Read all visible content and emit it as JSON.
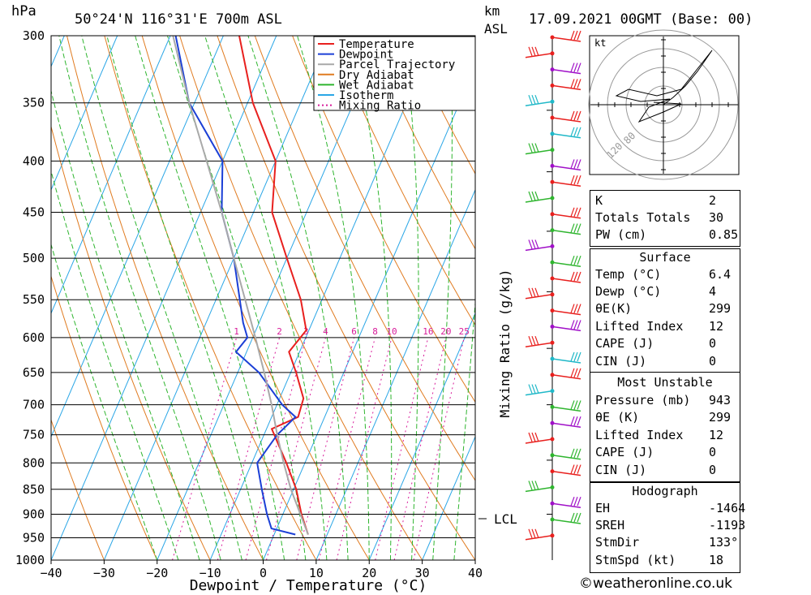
{
  "header": {
    "pressure_unit": "hPa",
    "location": "50°24'N  116°31'E  700m  ASL",
    "height_unit_1": "km",
    "height_unit_2": "ASL",
    "datetime": "17.09.2021  00GMT  (Base: 00)"
  },
  "chart_data": {
    "type": "line",
    "title": "50°24'N  116°31'E  700m  ASL",
    "xlabel": "Dewpoint / Temperature (°C)",
    "ylabel": "hPa",
    "xlim": [
      -40,
      40
    ],
    "ylim": [
      1000,
      300
    ],
    "y_scale": "log",
    "x_ticks": [
      -40,
      -30,
      -20,
      -10,
      0,
      10,
      20,
      30,
      40
    ],
    "pressure_levels": [
      300,
      350,
      400,
      450,
      500,
      550,
      600,
      650,
      700,
      750,
      800,
      850,
      900,
      950,
      1000
    ],
    "legend_position": "top-right",
    "legend": [
      {
        "name": "Temperature",
        "color": "#e8201e"
      },
      {
        "name": "Dewpoint",
        "color": "#1b3fd6"
      },
      {
        "name": "Parcel Trajectory",
        "color": "#a9a9a9"
      },
      {
        "name": "Dry Adiabat",
        "color": "#e07b20"
      },
      {
        "name": "Wet Adiabat",
        "color": "#2fb52f"
      },
      {
        "name": "Isotherm",
        "color": "#2aa6e6"
      },
      {
        "name": "Mixing Ratio",
        "color": "#d81b9a"
      }
    ],
    "mixing_ratio_label": "Mixing Ratio (g/kg)",
    "mixing_ratio_values": [
      "1",
      "2",
      "3",
      "4",
      "6",
      "8",
      "10",
      "16",
      "20",
      "25"
    ],
    "series": [
      {
        "name": "Temperature",
        "color": "#e8201e",
        "points": [
          {
            "p": 943,
            "t": 6.4
          },
          {
            "p": 900,
            "t": 3.5
          },
          {
            "p": 850,
            "t": 0.5
          },
          {
            "p": 800,
            "t": -3.5
          },
          {
            "p": 740,
            "t": -9.0
          },
          {
            "p": 720,
            "t": -5.0
          },
          {
            "p": 690,
            "t": -5.5
          },
          {
            "p": 650,
            "t": -9.0
          },
          {
            "p": 620,
            "t": -12.0
          },
          {
            "p": 590,
            "t": -10.5
          },
          {
            "p": 550,
            "t": -14.0
          },
          {
            "p": 500,
            "t": -20.0
          },
          {
            "p": 450,
            "t": -26.5
          },
          {
            "p": 400,
            "t": -30.0
          },
          {
            "p": 350,
            "t": -39.0
          },
          {
            "p": 300,
            "t": -47.0
          }
        ]
      },
      {
        "name": "Dewpoint",
        "color": "#1b3fd6",
        "points": [
          {
            "p": 943,
            "t": 4.0
          },
          {
            "p": 930,
            "t": -1.0
          },
          {
            "p": 900,
            "t": -3.0
          },
          {
            "p": 850,
            "t": -6.0
          },
          {
            "p": 800,
            "t": -9.0
          },
          {
            "p": 750,
            "t": -7.5
          },
          {
            "p": 720,
            "t": -5.5
          },
          {
            "p": 700,
            "t": -9.0
          },
          {
            "p": 650,
            "t": -16.0
          },
          {
            "p": 620,
            "t": -22.0
          },
          {
            "p": 600,
            "t": -21.0
          },
          {
            "p": 580,
            "t": -23.0
          },
          {
            "p": 500,
            "t": -30.0
          },
          {
            "p": 450,
            "t": -36.0
          },
          {
            "p": 400,
            "t": -40.0
          },
          {
            "p": 350,
            "t": -51.0
          },
          {
            "p": 300,
            "t": -59.0
          }
        ]
      },
      {
        "name": "Parcel Trajectory",
        "color": "#a9a9a9",
        "points": [
          {
            "p": 943,
            "t": 6.4
          },
          {
            "p": 900,
            "t": 3.3
          },
          {
            "p": 850,
            "t": -0.5
          },
          {
            "p": 800,
            "t": -4.0
          },
          {
            "p": 750,
            "t": -7.5
          },
          {
            "p": 700,
            "t": -11.0
          },
          {
            "p": 650,
            "t": -15.0
          },
          {
            "p": 600,
            "t": -19.5
          },
          {
            "p": 550,
            "t": -24.5
          },
          {
            "p": 500,
            "t": -30.0
          },
          {
            "p": 450,
            "t": -36.0
          },
          {
            "p": 400,
            "t": -43.0
          },
          {
            "p": 350,
            "t": -51.0
          },
          {
            "p": 300,
            "t": -59.5
          }
        ]
      }
    ],
    "lcl_label": "LCL",
    "lcl_pressure": 905,
    "height_ticks_km": [
      {
        "km": "1",
        "p": 900
      },
      {
        "km": "2",
        "p": 795
      },
      {
        "km": "3",
        "p": 700
      },
      {
        "km": "4",
        "p": 615
      },
      {
        "km": "5",
        "p": 540
      },
      {
        "km": "6",
        "p": 470
      },
      {
        "km": "7",
        "p": 410
      },
      {
        "km": "8",
        "p": 356
      }
    ]
  },
  "hodograph": {
    "unit_label": "kt",
    "ring_labels": [
      "80",
      "120"
    ]
  },
  "indices": {
    "rows": [
      {
        "label": "K",
        "value": "2"
      },
      {
        "label": "Totals Totals",
        "value": "30"
      },
      {
        "label": "PW (cm)",
        "value": "0.85"
      }
    ],
    "surface": {
      "title": "Surface",
      "rows": [
        {
          "label": "Temp (°C)",
          "value": "6.4"
        },
        {
          "label": "Dewp (°C)",
          "value": "4"
        },
        {
          "label": "θE(K)",
          "value": "299"
        },
        {
          "label": "Lifted Index",
          "value": "12"
        },
        {
          "label": "CAPE (J)",
          "value": "0"
        },
        {
          "label": "CIN (J)",
          "value": "0"
        }
      ]
    },
    "most_unstable": {
      "title": "Most Unstable",
      "rows": [
        {
          "label": "Pressure (mb)",
          "value": "943"
        },
        {
          "label": "θE (K)",
          "value": "299"
        },
        {
          "label": "Lifted Index",
          "value": "12"
        },
        {
          "label": "CAPE (J)",
          "value": "0"
        },
        {
          "label": "CIN (J)",
          "value": "0"
        }
      ]
    },
    "hodograph": {
      "title": "Hodograph",
      "rows": [
        {
          "label": "EH",
          "value": "-1464"
        },
        {
          "label": "SREH",
          "value": "-1193"
        },
        {
          "label": "StmDir",
          "value": "133°"
        },
        {
          "label": "StmSpd (kt)",
          "value": "18"
        }
      ]
    }
  },
  "credit": "©weatheronline.co.uk"
}
